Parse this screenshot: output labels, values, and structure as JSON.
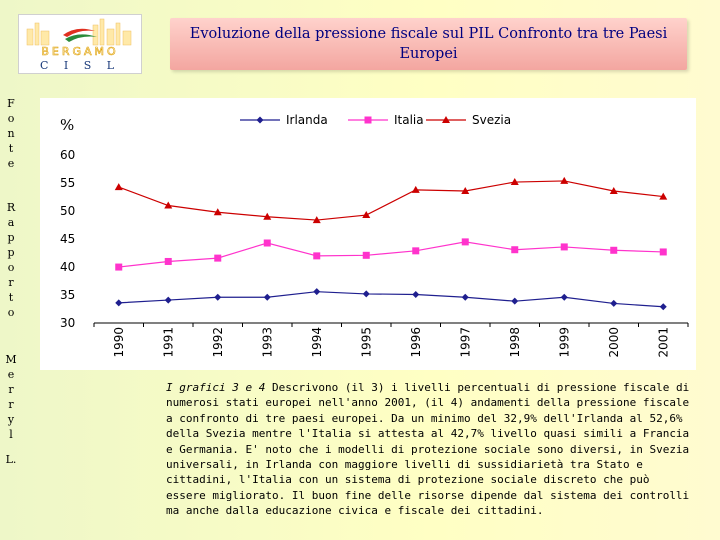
{
  "logo": {
    "line1": "BERGAMO",
    "line2": "C I S L"
  },
  "title": "Evoluzione della pressione fiscale sul PIL Confronto tra tre Paesi Europei",
  "left_labels": {
    "fonte": [
      "F",
      "o",
      "n",
      "t",
      "e"
    ],
    "rapporto": [
      "R",
      "a",
      "p",
      "p",
      "o",
      "r",
      "t",
      "o"
    ],
    "merryl": [
      "M",
      "e",
      "r",
      "r",
      "y",
      "l"
    ],
    "suffix": "L."
  },
  "chart_data": {
    "type": "line",
    "title": "",
    "ylabel": "%",
    "xlabel": "",
    "ylim": [
      30,
      62
    ],
    "yticks": [
      30,
      35,
      40,
      45,
      50,
      55,
      60
    ],
    "categories": [
      "1990",
      "1991",
      "1992",
      "1993",
      "1994",
      "1995",
      "1996",
      "1997",
      "1998",
      "1999",
      "2000",
      "2001"
    ],
    "legend_position": "top",
    "series": [
      {
        "name": "Irlanda",
        "color": "#1f1f8f",
        "marker": "diamond",
        "values": [
          33.6,
          34.1,
          34.6,
          34.6,
          35.6,
          35.2,
          35.1,
          34.6,
          33.9,
          34.6,
          33.5,
          32.9
        ]
      },
      {
        "name": "Italia",
        "color": "#ff33cc",
        "marker": "square",
        "values": [
          40.0,
          41.0,
          41.6,
          44.3,
          42.0,
          42.1,
          42.9,
          44.5,
          43.1,
          43.6,
          43.0,
          42.7
        ]
      },
      {
        "name": "Svezia",
        "color": "#cc0000",
        "marker": "triangle",
        "values": [
          54.3,
          51.0,
          49.8,
          49.0,
          48.4,
          49.3,
          53.8,
          53.6,
          55.2,
          55.4,
          53.6,
          52.6
        ]
      }
    ]
  },
  "caption": {
    "lead": "I grafici 3 e 4",
    "body": " Descrivono (il 3) i livelli percentuali di pressione fiscale di numerosi stati europei nell'anno 2001, (il 4) andamenti della pressione fiscale a confronto di tre paesi europei. Da un minimo del 32,9% dell'Irlanda al 52,6% della Svezia mentre l'Italia si attesta al 42,7% livello quasi simili a Francia e Germania. E' noto che i modelli di protezione sociale sono diversi, in Svezia universali, in Irlanda con maggiore livelli di sussidiarietà tra Stato e cittadini, l'Italia con un sistema di protezione sociale discreto che può essere migliorato. Il buon fine delle risorse dipende dal sistema dei controlli ma anche dalla educazione civica e fiscale dei cittadini."
  }
}
